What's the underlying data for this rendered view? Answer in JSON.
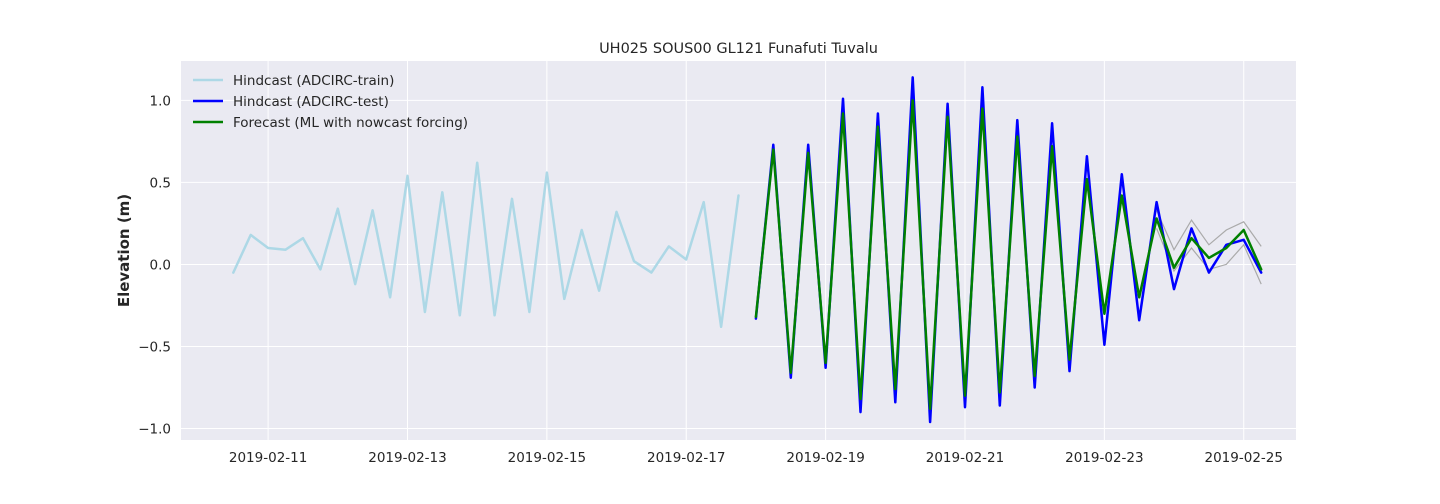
{
  "chart_data": {
    "type": "line",
    "title": "UH025 SOUS00 GL121 Funafuti Tuvalu",
    "xlabel": "",
    "ylabel": "Elevation (m)",
    "x_type": "date",
    "xlim": [
      "2019-02-09T18:00",
      "2019-02-25T18:00"
    ],
    "ylim": [
      -1.07,
      1.24
    ],
    "x_ticks": [
      "2019-02-11",
      "2019-02-13",
      "2019-02-15",
      "2019-02-17",
      "2019-02-19",
      "2019-02-21",
      "2019-02-23",
      "2019-02-25"
    ],
    "y_ticks": [
      -1.0,
      -0.5,
      0.0,
      0.5,
      1.0
    ],
    "y_tick_labels": [
      "−1.0",
      "−0.5",
      "0.0",
      "0.5",
      "1.0"
    ],
    "grid": true,
    "legend_position": "top-left",
    "series": [
      {
        "name": "Hindcast (ADCIRC-train)",
        "color": "#add8e6",
        "x": [
          "2019-02-10T12:00",
          "2019-02-10T18:00",
          "2019-02-11T00:00",
          "2019-02-11T06:00",
          "2019-02-11T12:00",
          "2019-02-11T18:00",
          "2019-02-12T00:00",
          "2019-02-12T06:00",
          "2019-02-12T12:00",
          "2019-02-12T18:00",
          "2019-02-13T00:00",
          "2019-02-13T06:00",
          "2019-02-13T12:00",
          "2019-02-13T18:00",
          "2019-02-14T00:00",
          "2019-02-14T06:00",
          "2019-02-14T12:00",
          "2019-02-14T18:00",
          "2019-02-15T00:00",
          "2019-02-15T06:00",
          "2019-02-15T12:00",
          "2019-02-15T18:00",
          "2019-02-16T00:00",
          "2019-02-16T06:00",
          "2019-02-16T12:00",
          "2019-02-16T18:00",
          "2019-02-17T00:00",
          "2019-02-17T06:00",
          "2019-02-17T12:00",
          "2019-02-17T18:00"
        ],
        "values": [
          -0.05,
          0.18,
          0.1,
          0.09,
          0.16,
          -0.03,
          0.34,
          -0.12,
          0.33,
          -0.2,
          0.54,
          -0.29,
          0.44,
          -0.31,
          0.62,
          -0.31,
          0.4,
          -0.29,
          0.56,
          -0.21,
          0.21,
          -0.16,
          0.32,
          0.02,
          -0.05,
          0.11,
          0.03,
          0.38,
          -0.38,
          0.42
        ]
      },
      {
        "name": "Hindcast (ADCIRC-test)",
        "color": "#0000ff",
        "x": [
          "2019-02-18T00:00",
          "2019-02-18T06:00",
          "2019-02-18T12:00",
          "2019-02-18T18:00",
          "2019-02-19T00:00",
          "2019-02-19T06:00",
          "2019-02-19T12:00",
          "2019-02-19T18:00",
          "2019-02-20T00:00",
          "2019-02-20T06:00",
          "2019-02-20T12:00",
          "2019-02-20T18:00",
          "2019-02-21T00:00",
          "2019-02-21T06:00",
          "2019-02-21T12:00",
          "2019-02-21T18:00",
          "2019-02-22T00:00",
          "2019-02-22T06:00",
          "2019-02-22T12:00",
          "2019-02-22T18:00",
          "2019-02-23T00:00",
          "2019-02-23T06:00",
          "2019-02-23T12:00",
          "2019-02-23T18:00",
          "2019-02-24T00:00",
          "2019-02-24T06:00",
          "2019-02-24T12:00",
          "2019-02-24T18:00",
          "2019-02-25T00:00",
          "2019-02-25T06:00"
        ],
        "values": [
          -0.33,
          0.73,
          -0.69,
          0.73,
          -0.63,
          1.01,
          -0.9,
          0.92,
          -0.84,
          1.14,
          -0.96,
          0.98,
          -0.87,
          1.08,
          -0.86,
          0.88,
          -0.75,
          0.86,
          -0.65,
          0.66,
          -0.49,
          0.55,
          -0.34,
          0.38,
          -0.15,
          0.22,
          -0.05,
          0.12,
          0.15,
          -0.05
        ]
      },
      {
        "name": "Forecast (ML with nowcast forcing)",
        "color": "#008000",
        "x": [
          "2019-02-18T00:00",
          "2019-02-18T06:00",
          "2019-02-18T12:00",
          "2019-02-18T18:00",
          "2019-02-19T00:00",
          "2019-02-19T06:00",
          "2019-02-19T12:00",
          "2019-02-19T18:00",
          "2019-02-20T00:00",
          "2019-02-20T06:00",
          "2019-02-20T12:00",
          "2019-02-20T18:00",
          "2019-02-21T00:00",
          "2019-02-21T06:00",
          "2019-02-21T12:00",
          "2019-02-21T18:00",
          "2019-02-22T00:00",
          "2019-02-22T06:00",
          "2019-02-22T12:00",
          "2019-02-22T18:00",
          "2019-02-23T00:00",
          "2019-02-23T06:00",
          "2019-02-23T12:00",
          "2019-02-23T18:00",
          "2019-02-24T00:00",
          "2019-02-24T06:00",
          "2019-02-24T12:00",
          "2019-02-24T18:00",
          "2019-02-25T00:00",
          "2019-02-25T06:00"
        ],
        "values": [
          -0.32,
          0.7,
          -0.66,
          0.68,
          -0.6,
          0.92,
          -0.82,
          0.84,
          -0.76,
          1.0,
          -0.88,
          0.9,
          -0.8,
          0.95,
          -0.78,
          0.78,
          -0.68,
          0.72,
          -0.58,
          0.52,
          -0.3,
          0.42,
          -0.2,
          0.28,
          -0.02,
          0.16,
          0.04,
          0.1,
          0.21,
          -0.03
        ]
      }
    ],
    "bands": [
      {
        "color": "#aaaaaa",
        "x": [
          "2019-02-23T18:00",
          "2019-02-24T00:00",
          "2019-02-24T06:00",
          "2019-02-24T12:00",
          "2019-02-24T18:00",
          "2019-02-25T00:00",
          "2019-02-25T06:00"
        ],
        "upper": [
          0.33,
          0.09,
          0.27,
          0.12,
          0.21,
          0.26,
          0.11
        ],
        "lower": [
          0.22,
          -0.04,
          0.1,
          -0.03,
          0.0,
          0.12,
          -0.12
        ]
      }
    ]
  }
}
